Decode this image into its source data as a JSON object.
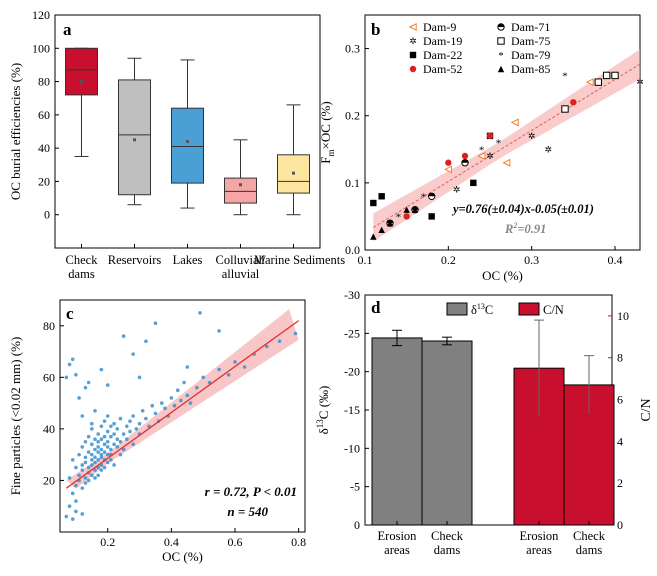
{
  "chart_data": [
    {
      "panel": "a",
      "type": "box",
      "ylabel": "OC burial efficiencies (%)",
      "ylim": [
        -20,
        120
      ],
      "yticks": [
        0,
        20,
        40,
        60,
        80,
        100,
        120
      ],
      "categories": [
        "Check dams",
        "Reservoirs",
        "Lakes",
        "Colluvial/ alluvial",
        "Marine Sediments"
      ],
      "category_lines": [
        [
          "Check",
          "dams"
        ],
        [
          "Reservoirs"
        ],
        [
          "Lakes"
        ],
        [
          "Colluvial/",
          "alluvial"
        ],
        [
          "Marine Sediments"
        ]
      ],
      "boxes": [
        {
          "whisker_low": 35,
          "q1": 72,
          "median": 87,
          "q3": 100,
          "whisker_high": 100,
          "mean": 80,
          "fill": "#c8102e"
        },
        {
          "whisker_low": 6,
          "q1": 12,
          "median": 48,
          "q3": 81,
          "whisker_high": 94,
          "mean": 45,
          "fill": "#bfbfbf"
        },
        {
          "whisker_low": 4,
          "q1": 19,
          "median": 41,
          "q3": 64,
          "whisker_high": 93,
          "mean": 44,
          "fill": "#4a9fd4"
        },
        {
          "whisker_low": 0,
          "q1": 7,
          "median": 14,
          "q3": 22,
          "whisker_high": 45,
          "mean": 18,
          "fill": "#f4a5a5"
        },
        {
          "whisker_low": 0,
          "q1": 13,
          "median": 20,
          "q3": 36,
          "whisker_high": 66,
          "mean": 25,
          "fill": "#fde7a0"
        }
      ]
    },
    {
      "panel": "b",
      "type": "scatter",
      "xlabel": "OC (%)",
      "ylabel_main": "F",
      "ylabel_sub": "m",
      "ylabel_rest": "×OC (%)",
      "xlim": [
        0.1,
        0.43
      ],
      "ylim": [
        0,
        0.35
      ],
      "xticks": [
        0.1,
        0.2,
        0.3,
        0.4
      ],
      "yticks": [
        0.0,
        0.1,
        0.2,
        0.3
      ],
      "fit": {
        "slope": 0.76,
        "intercept": -0.05
      },
      "equation": "y=0.76(±0.04)x-0.05(±0.01)",
      "r2_label": "R",
      "r2_sup": "2",
      "r2_value": "=0.91",
      "legend": [
        "Dam-9",
        "Dam-19",
        "Dam-22",
        "Dam-52",
        "Dam-71",
        "Dam-75",
        "Dam-79",
        "Dam-85"
      ],
      "series": [
        {
          "name": "Dam-9",
          "marker": "triangle-left",
          "color": "#f08030",
          "x": [
            0.2,
            0.24,
            0.27,
            0.28,
            0.37
          ],
          "y": [
            0.12,
            0.14,
            0.13,
            0.19,
            0.25
          ]
        },
        {
          "name": "Dam-19",
          "marker": "star",
          "color": "#30c8b0",
          "x": [
            0.21,
            0.25,
            0.3,
            0.32,
            0.43
          ],
          "y": [
            0.09,
            0.14,
            0.17,
            0.15,
            0.25
          ]
        },
        {
          "name": "Dam-22",
          "marker": "square",
          "color": "#000000",
          "x": [
            0.11,
            0.12,
            0.18,
            0.23,
            0.25
          ],
          "y": [
            0.07,
            0.08,
            0.05,
            0.1,
            0.17
          ]
        },
        {
          "name": "Dam-52",
          "marker": "circle",
          "color": "#e02020",
          "x": [
            0.15,
            0.2,
            0.22,
            0.25,
            0.35
          ],
          "y": [
            0.05,
            0.13,
            0.14,
            0.17,
            0.22
          ]
        },
        {
          "name": "Dam-71",
          "marker": "half-circle",
          "color": "#000000",
          "x": [
            0.13,
            0.16,
            0.18,
            0.22
          ],
          "y": [
            0.04,
            0.06,
            0.08,
            0.13
          ]
        },
        {
          "name": "Dam-75",
          "marker": "open-square",
          "color": "#000000",
          "x": [
            0.34,
            0.38,
            0.39,
            0.4
          ],
          "y": [
            0.21,
            0.25,
            0.26,
            0.26
          ]
        },
        {
          "name": "Dam-79",
          "marker": "asterisk",
          "color": "#000000",
          "x": [
            0.14,
            0.17,
            0.24,
            0.26,
            0.34
          ],
          "y": [
            0.05,
            0.08,
            0.15,
            0.16,
            0.26
          ]
        },
        {
          "name": "Dam-85",
          "marker": "triangle-up",
          "color": "#000000",
          "x": [
            0.11,
            0.12,
            0.13,
            0.15,
            0.16
          ],
          "y": [
            0.02,
            0.03,
            0.04,
            0.06,
            0.06
          ]
        }
      ]
    },
    {
      "panel": "c",
      "type": "scatter",
      "xlabel": "OC (%)",
      "ylabel": "Fine particles (<0.02 mm) (%)",
      "xlim": [
        0.05,
        0.82
      ],
      "ylim": [
        0,
        90
      ],
      "xticks": [
        0.2,
        0.4,
        0.6,
        0.8
      ],
      "yticks": [
        20,
        40,
        60,
        80
      ],
      "fit_points": [
        [
          0.07,
          17
        ],
        [
          0.8,
          82
        ]
      ],
      "annotation_1": "r = 0.72, P < 0.01",
      "annotation_2": "n = 540",
      "x": [
        0.07,
        0.08,
        0.08,
        0.09,
        0.09,
        0.1,
        0.1,
        0.1,
        0.11,
        0.11,
        0.11,
        0.12,
        0.12,
        0.12,
        0.12,
        0.13,
        0.13,
        0.13,
        0.13,
        0.13,
        0.14,
        0.14,
        0.14,
        0.14,
        0.14,
        0.15,
        0.15,
        0.15,
        0.15,
        0.15,
        0.15,
        0.16,
        0.16,
        0.16,
        0.16,
        0.16,
        0.16,
        0.17,
        0.17,
        0.17,
        0.17,
        0.17,
        0.17,
        0.17,
        0.18,
        0.18,
        0.18,
        0.18,
        0.18,
        0.18,
        0.18,
        0.19,
        0.19,
        0.19,
        0.19,
        0.19,
        0.19,
        0.2,
        0.2,
        0.2,
        0.2,
        0.2,
        0.2,
        0.21,
        0.21,
        0.21,
        0.21,
        0.21,
        0.22,
        0.22,
        0.22,
        0.22,
        0.23,
        0.23,
        0.23,
        0.24,
        0.24,
        0.24,
        0.25,
        0.25,
        0.26,
        0.26,
        0.27,
        0.27,
        0.28,
        0.28,
        0.29,
        0.3,
        0.3,
        0.31,
        0.32,
        0.33,
        0.34,
        0.35,
        0.36,
        0.37,
        0.38,
        0.39,
        0.4,
        0.41,
        0.42,
        0.43,
        0.44,
        0.45,
        0.46,
        0.48,
        0.5,
        0.52,
        0.55,
        0.58,
        0.6,
        0.63,
        0.66,
        0.7,
        0.74,
        0.79,
        0.09,
        0.1,
        0.08,
        0.07,
        0.12,
        0.14,
        0.11,
        0.16,
        0.13,
        0.18,
        0.2,
        0.3,
        0.35,
        0.49,
        0.25,
        0.32,
        0.28,
        0.55,
        0.45,
        0.15,
        0.09,
        0.1,
        0.12
      ],
      "y": [
        6,
        10,
        21,
        15,
        28,
        18,
        25,
        12,
        20,
        30,
        22,
        17,
        26,
        33,
        24,
        21,
        29,
        35,
        19,
        27,
        23,
        31,
        37,
        25,
        20,
        28,
        34,
        22,
        30,
        40,
        26,
        24,
        32,
        29,
        36,
        21,
        27,
        31,
        25,
        35,
        28,
        38,
        22,
        33,
        30,
        26,
        36,
        41,
        24,
        32,
        29,
        34,
        28,
        37,
        31,
        25,
        43,
        30,
        35,
        27,
        39,
        33,
        45,
        32,
        28,
        37,
        41,
        30,
        34,
        38,
        26,
        42,
        33,
        36,
        40,
        35,
        44,
        30,
        38,
        32,
        41,
        36,
        43,
        39,
        45,
        34,
        40,
        42,
        38,
        47,
        44,
        41,
        49,
        46,
        43,
        50,
        48,
        45,
        52,
        49,
        55,
        51,
        58,
        53,
        50,
        56,
        60,
        58,
        63,
        61,
        66,
        64,
        69,
        72,
        74,
        77,
        67,
        61,
        65,
        60,
        45,
        58,
        52,
        47,
        56,
        63,
        57,
        60,
        81,
        85,
        76,
        74,
        69,
        78,
        64,
        42,
        5,
        8,
        7
      ]
    },
    {
      "panel": "d",
      "type": "bar",
      "categories": [
        [
          "Erosion",
          "areas"
        ],
        [
          "Check",
          "dams"
        ],
        [
          "Erosion",
          "areas"
        ],
        [
          "Check",
          "dams"
        ]
      ],
      "legend": [
        "δ",
        "C/N"
      ],
      "legend_sup": "13",
      "legend_suffix": "C",
      "ylabel_left": "δ",
      "ylabel_left_sup": "13",
      "ylabel_left_rest": "C (‰)",
      "ylabel_right": "C/N",
      "ylim_left": [
        0,
        -30
      ],
      "yticks_left": [
        0,
        -5,
        -10,
        -15,
        -20,
        -25,
        -30
      ],
      "ylim_right": [
        0,
        11
      ],
      "yticks_right": [
        0,
        2,
        4,
        6,
        8,
        10
      ],
      "d13c": {
        "values": [
          -24.4,
          -24.0
        ],
        "errors": [
          1.0,
          0.5
        ],
        "color": "#808080"
      },
      "cn": {
        "values": [
          7.5,
          6.7
        ],
        "errors": [
          2.3,
          1.4
        ],
        "color": "#c8102e"
      }
    }
  ]
}
